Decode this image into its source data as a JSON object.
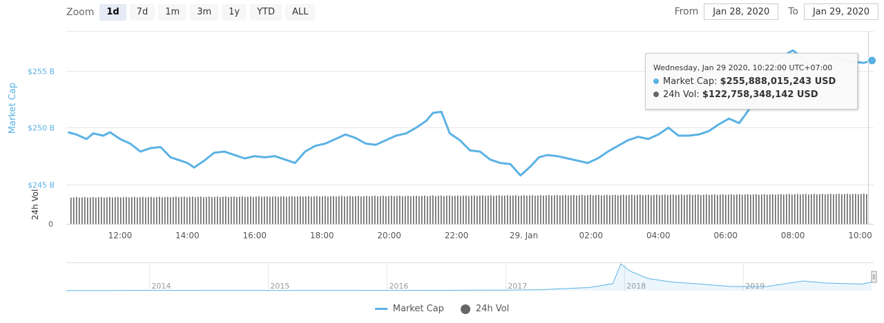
{
  "toolbar": {
    "zoom_label": "Zoom",
    "zoom_buttons": [
      "1d",
      "7d",
      "1m",
      "3m",
      "1y",
      "YTD",
      "ALL"
    ],
    "active_zoom": "1d",
    "from_label": "From",
    "from_value": "Jan 28, 2020",
    "to_label": "To",
    "to_value": "Jan 29, 2020"
  },
  "tooltip": {
    "date": "Wednesday, Jan 29 2020, 10:22:00 UTC+07:00",
    "market_cap_label": "Market Cap:",
    "market_cap_value": "$255,888,015,243 USD",
    "volume_label": "24h Vol:",
    "volume_value": "$122,758,348,142 USD"
  },
  "legend": {
    "market_cap": "Market Cap",
    "volume": "24h Vol"
  },
  "colors": {
    "market_cap": "#5ab1e4",
    "volume": "#666666",
    "grid": "#e6e6e6"
  },
  "chart_data": [
    {
      "type": "line",
      "ylabel": "Market Cap",
      "y_ticks": [
        "$245 B",
        "$250 B",
        "$255 B"
      ],
      "y_tick_values": [
        245,
        250,
        255
      ],
      "ylim": [
        245,
        258.5
      ],
      "x_ticks": [
        "12:00",
        "14:00",
        "16:00",
        "18:00",
        "20:00",
        "22:00",
        "29. Jan",
        "02:00",
        "04:00",
        "06:00",
        "08:00",
        "10:00"
      ],
      "x_tick_hours": [
        12,
        14,
        16,
        18,
        20,
        22,
        24,
        26,
        28,
        30,
        32,
        34
      ],
      "xlim_hours": [
        10.4,
        34.4
      ],
      "grid": true,
      "series": [
        {
          "name": "Market Cap",
          "unit": "B USD",
          "x_hours": [
            10.45,
            10.7,
            11.0,
            11.2,
            11.5,
            11.7,
            12.0,
            12.3,
            12.6,
            12.9,
            13.2,
            13.5,
            13.8,
            14.0,
            14.2,
            14.5,
            14.8,
            15.1,
            15.4,
            15.7,
            16.0,
            16.3,
            16.6,
            16.9,
            17.2,
            17.5,
            17.8,
            18.1,
            18.4,
            18.7,
            19.0,
            19.3,
            19.6,
            19.9,
            20.2,
            20.5,
            20.8,
            21.1,
            21.3,
            21.55,
            21.8,
            22.1,
            22.4,
            22.7,
            23.0,
            23.3,
            23.6,
            23.9,
            24.2,
            24.45,
            24.7,
            25.0,
            25.3,
            25.6,
            25.9,
            26.2,
            26.5,
            26.8,
            27.1,
            27.4,
            27.7,
            28.0,
            28.3,
            28.6,
            28.9,
            29.2,
            29.5,
            29.8,
            30.1,
            30.4,
            30.6,
            30.9,
            31.1,
            31.4,
            31.7,
            32.0,
            32.3,
            32.6,
            32.9,
            33.2,
            33.5,
            33.8,
            34.1,
            34.35
          ],
          "values": [
            249.6,
            249.4,
            249.0,
            249.5,
            249.3,
            249.6,
            249.0,
            248.6,
            247.9,
            248.2,
            248.3,
            247.4,
            247.1,
            246.9,
            246.5,
            247.1,
            247.8,
            247.9,
            247.6,
            247.3,
            247.5,
            247.4,
            247.5,
            247.2,
            246.9,
            247.9,
            248.4,
            248.6,
            249.0,
            249.4,
            249.1,
            248.6,
            248.5,
            248.9,
            249.3,
            249.5,
            250.0,
            250.6,
            251.3,
            251.4,
            249.5,
            248.9,
            248.0,
            247.9,
            247.2,
            246.9,
            246.8,
            245.8,
            246.6,
            247.4,
            247.6,
            247.5,
            247.3,
            247.1,
            246.9,
            247.3,
            247.9,
            248.4,
            248.9,
            249.2,
            249.0,
            249.4,
            250.0,
            249.3,
            249.3,
            249.4,
            249.7,
            250.3,
            250.8,
            250.4,
            251.2,
            252.5,
            254.0,
            255.6,
            256.3,
            256.8,
            256.1,
            255.2,
            255.8,
            256.2,
            256.0,
            255.8,
            255.7,
            255.9
          ]
        }
      ]
    },
    {
      "type": "bar",
      "ylabel": "24h Vol",
      "y_ticks": [
        "0"
      ],
      "series": [
        {
          "name": "24h Vol",
          "unit": "B USD",
          "typical_value": 122.76
        }
      ]
    },
    {
      "type": "area",
      "role": "navigator",
      "x_ticks": [
        "2014",
        "2015",
        "2016",
        "2017",
        "2018",
        "2019"
      ],
      "x_years": [
        2013.3,
        2013.6,
        2014.0,
        2014.5,
        2015.0,
        2015.5,
        2016.0,
        2016.5,
        2017.0,
        2017.3,
        2017.5,
        2017.7,
        2017.9,
        2017.97,
        2018.05,
        2018.2,
        2018.4,
        2018.6,
        2018.9,
        2019.2,
        2019.5,
        2019.7,
        2020.0,
        2020.08
      ],
      "values": [
        1,
        1,
        8,
        5,
        4,
        5,
        7,
        10,
        16,
        28,
        60,
        90,
        200,
        780,
        560,
        350,
        250,
        200,
        120,
        120,
        280,
        220,
        190,
        250
      ]
    }
  ]
}
